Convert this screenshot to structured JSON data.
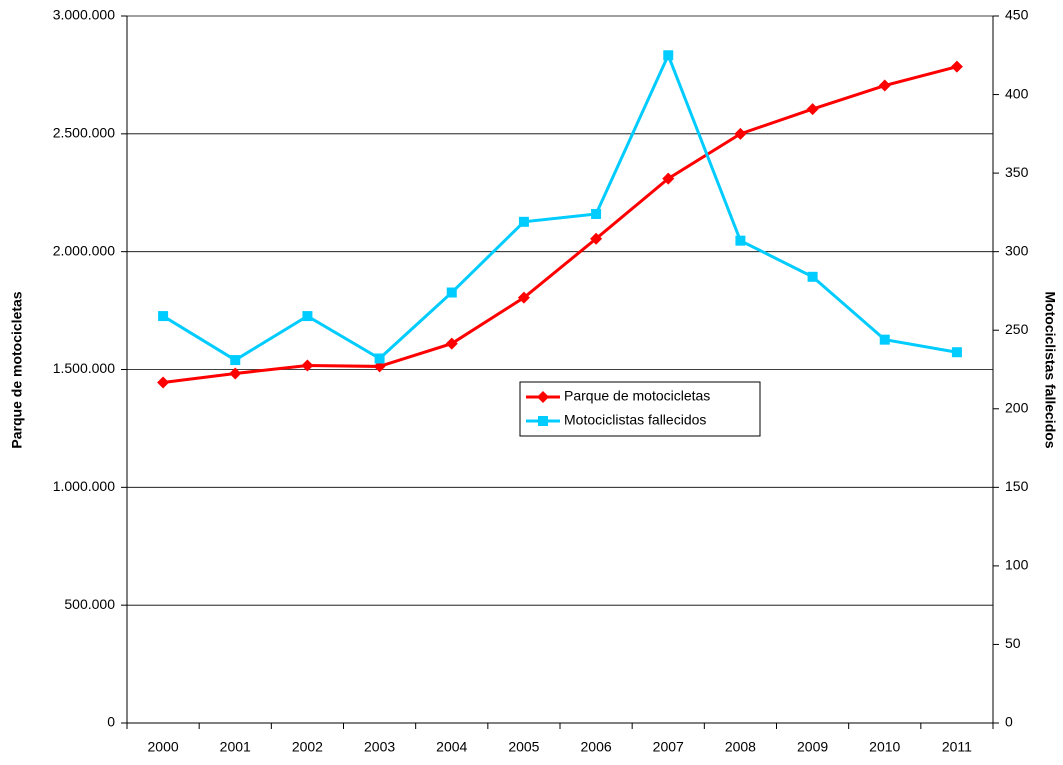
{
  "chart_data": {
    "type": "line",
    "categories": [
      "2000",
      "2001",
      "2002",
      "2003",
      "2004",
      "2005",
      "2006",
      "2007",
      "2008",
      "2009",
      "2010",
      "2011"
    ],
    "series": [
      {
        "name": "Parque de motocicletas",
        "color": "#ff0000",
        "marker": "diamond",
        "values": [
          1445000,
          1483000,
          1517000,
          1513000,
          1610000,
          1805000,
          2055000,
          2310000,
          2500000,
          2605000,
          2705000,
          2785000
        ]
      },
      {
        "name": "Motociclistas fallecidos",
        "color": "#00ccff",
        "marker": "square",
        "axis": "y2",
        "values": [
          259,
          231,
          259,
          232,
          274,
          319,
          324,
          425,
          307,
          284,
          244,
          236
        ]
      }
    ],
    "ylabel": "Parque de motocicletas",
    "y2label": "Motociclistas fallecidos",
    "ylim": [
      0,
      3000000
    ],
    "yticks": [
      0,
      {
        "value": 500000,
        "label": "500.000"
      },
      {
        "value": 1000000,
        "label": "1.000.000"
      },
      {
        "value": 1500000,
        "label": "1.500.000"
      },
      {
        "value": 2000000,
        "label": "2.000.000"
      },
      {
        "value": 2500000,
        "label": "2.500.000"
      },
      {
        "value": 3000000,
        "label": "3.000.000"
      }
    ],
    "y2lim": [
      0,
      450
    ],
    "y2ticks": [
      0,
      50,
      100,
      150,
      200,
      250,
      300,
      350,
      400,
      450
    ],
    "grid": true
  }
}
